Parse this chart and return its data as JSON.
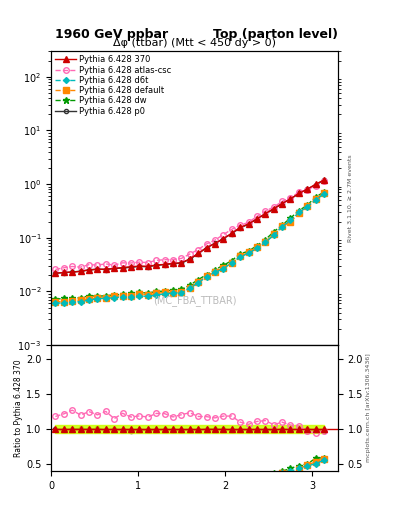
{
  "title_left": "1960 GeV ppbar",
  "title_right": "Top (parton level)",
  "plot_title": "Δφ (ttbar) (Mtt < 450 dy > 0)",
  "watermark": "(MC_FBA_TTBAR)",
  "right_label_top": "Rivet 3.1.10, ≥ 2.7M events",
  "right_label_bot": "mcplots.cern.ch [arXiv:1306.3436]",
  "ylabel_bot": "Ratio to Pythia 6.428 370",
  "series": [
    {
      "label": "Pythia 6.428 370",
      "color": "#cc0000",
      "linestyle": "-",
      "marker": "^",
      "ms": 4,
      "lw": 1.0,
      "filled": true
    },
    {
      "label": "Pythia 6.428 atlas-csc",
      "color": "#ff69b4",
      "linestyle": "--",
      "marker": "o",
      "ms": 4,
      "lw": 1.0,
      "filled": false
    },
    {
      "label": "Pythia 6.428 d6t",
      "color": "#00bbbb",
      "linestyle": "--",
      "marker": "D",
      "ms": 3,
      "lw": 1.0,
      "filled": true
    },
    {
      "label": "Pythia 6.428 default",
      "color": "#ff8800",
      "linestyle": "--",
      "marker": "s",
      "ms": 4,
      "lw": 1.0,
      "filled": true
    },
    {
      "label": "Pythia 6.428 dw",
      "color": "#009900",
      "linestyle": "--",
      "marker": "*",
      "ms": 5,
      "lw": 1.0,
      "filled": true
    },
    {
      "label": "Pythia 6.428 p0",
      "color": "#333333",
      "linestyle": "-",
      "marker": "o",
      "ms": 3,
      "lw": 1.0,
      "filled": false
    }
  ],
  "ref_band_color": "#ccff00",
  "bg": "#ffffff"
}
